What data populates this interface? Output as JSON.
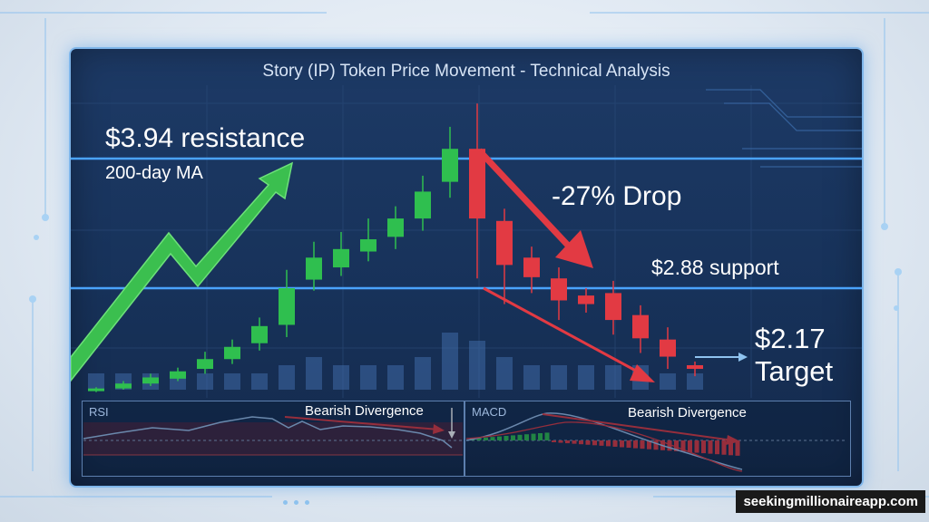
{
  "title": "Story (IP) Token Price Movement - Technical Analysis",
  "annotations": {
    "resistance": "$3.94 resistance",
    "ma": "200-day MA",
    "drop": "-27% Drop",
    "support": "$2.88 support",
    "target_price": "$2.17",
    "target_word": "Target"
  },
  "rsi": {
    "label": "RSI",
    "divergence": "Bearish Divergence"
  },
  "macd": {
    "label": "MACD",
    "divergence": "Bearish Divergence"
  },
  "watermark": "seekingmillionaireapp.com",
  "colors": {
    "bull": "#2fbf4f",
    "bear": "#e23a43",
    "line": "#3d8ff0",
    "bg": "#17325a"
  },
  "chart_data": {
    "type": "candlestick",
    "levels": [
      {
        "price": 3.94,
        "label": "$3.94 resistance"
      },
      {
        "price": 2.88,
        "label": "$2.88 support"
      },
      {
        "price": 2.17,
        "label": "$2.17 Target"
      }
    ],
    "candles": [
      {
        "o": 2.04,
        "c": 2.06,
        "h": 2.07,
        "l": 2.03,
        "dir": "up"
      },
      {
        "o": 2.06,
        "c": 2.1,
        "h": 2.12,
        "l": 2.05,
        "dir": "up"
      },
      {
        "o": 2.1,
        "c": 2.15,
        "h": 2.18,
        "l": 2.08,
        "dir": "up"
      },
      {
        "o": 2.14,
        "c": 2.2,
        "h": 2.23,
        "l": 2.12,
        "dir": "up"
      },
      {
        "o": 2.22,
        "c": 2.3,
        "h": 2.36,
        "l": 2.18,
        "dir": "up"
      },
      {
        "o": 2.3,
        "c": 2.4,
        "h": 2.46,
        "l": 2.26,
        "dir": "up"
      },
      {
        "o": 2.43,
        "c": 2.57,
        "h": 2.64,
        "l": 2.37,
        "dir": "up"
      },
      {
        "o": 2.58,
        "c": 2.88,
        "h": 3.03,
        "l": 2.48,
        "dir": "up"
      },
      {
        "o": 2.95,
        "c": 3.13,
        "h": 3.26,
        "l": 2.86,
        "dir": "up"
      },
      {
        "o": 3.05,
        "c": 3.2,
        "h": 3.34,
        "l": 2.98,
        "dir": "up"
      },
      {
        "o": 3.18,
        "c": 3.28,
        "h": 3.45,
        "l": 3.1,
        "dir": "up"
      },
      {
        "o": 3.3,
        "c": 3.45,
        "h": 3.55,
        "l": 3.2,
        "dir": "up"
      },
      {
        "o": 3.45,
        "c": 3.67,
        "h": 3.8,
        "l": 3.35,
        "dir": "up"
      },
      {
        "o": 3.75,
        "c": 4.02,
        "h": 4.2,
        "l": 3.62,
        "dir": "up"
      },
      {
        "o": 4.02,
        "c": 3.45,
        "h": 4.39,
        "l": 2.96,
        "dir": "down"
      },
      {
        "o": 3.43,
        "c": 3.07,
        "h": 3.53,
        "l": 2.75,
        "dir": "down"
      },
      {
        "o": 3.13,
        "c": 2.97,
        "h": 3.22,
        "l": 2.84,
        "dir": "down"
      },
      {
        "o": 2.96,
        "c": 2.78,
        "h": 3.05,
        "l": 2.62,
        "dir": "down"
      },
      {
        "o": 2.82,
        "c": 2.75,
        "h": 2.88,
        "l": 2.68,
        "dir": "down"
      },
      {
        "o": 2.84,
        "c": 2.62,
        "h": 2.94,
        "l": 2.5,
        "dir": "down"
      },
      {
        "o": 2.66,
        "c": 2.47,
        "h": 2.74,
        "l": 2.35,
        "dir": "down"
      },
      {
        "o": 2.46,
        "c": 2.32,
        "h": 2.56,
        "l": 2.22,
        "dir": "down"
      },
      {
        "o": 2.25,
        "c": 2.22,
        "h": 2.28,
        "l": 2.16,
        "dir": "down"
      }
    ],
    "volume": [
      0.2,
      0.2,
      0.2,
      0.2,
      0.2,
      0.2,
      0.2,
      0.3,
      0.4,
      0.3,
      0.3,
      0.3,
      0.4,
      0.7,
      0.6,
      0.4,
      0.3,
      0.3,
      0.3,
      0.3,
      0.3,
      0.2,
      0.2
    ]
  }
}
